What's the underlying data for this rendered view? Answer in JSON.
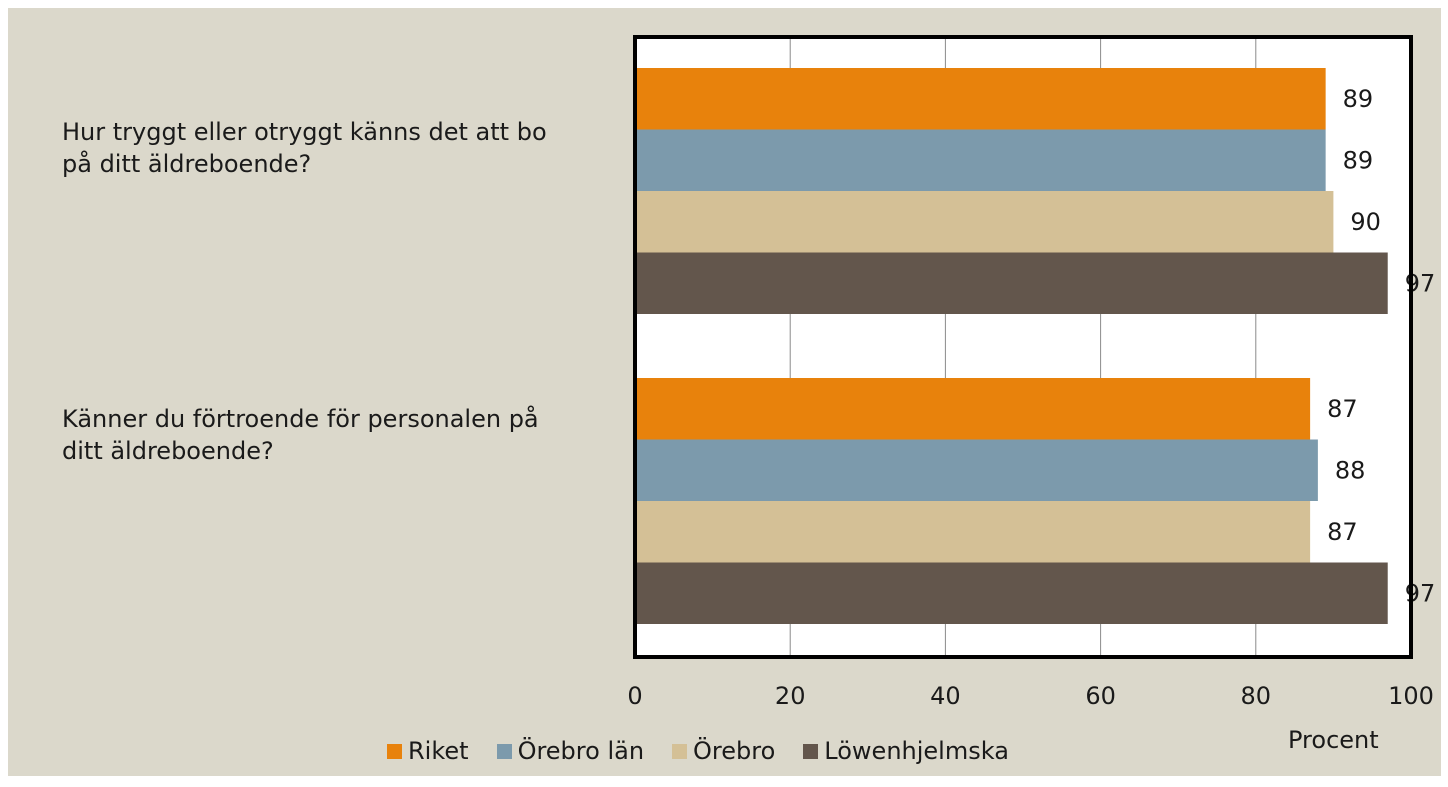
{
  "colors": {
    "page_bg": "#ffffff",
    "panel_bg": "#dbd8cb",
    "plot_bg": "#ffffff",
    "grid": "#8a8a8a",
    "border": "#000000"
  },
  "chart_data": {
    "type": "bar",
    "orientation": "horizontal",
    "categories": [
      "Hur tryggt eller otryggt känns det att bo på ditt äldreboende?",
      "Känner du förtroende för personalen på ditt äldreboende?"
    ],
    "series": [
      {
        "name": "Riket",
        "color": "#e8820c",
        "values": [
          89,
          87
        ]
      },
      {
        "name": "Örebro län",
        "color": "#7c9aac",
        "values": [
          89,
          88
        ]
      },
      {
        "name": "Örebro",
        "color": "#d4c096",
        "values": [
          90,
          87
        ]
      },
      {
        "name": "Löwenhjelmska",
        "color": "#63564c",
        "values": [
          97,
          97
        ]
      }
    ],
    "xlim": [
      0,
      100
    ],
    "xticks": [
      "0",
      "20",
      "40",
      "60",
      "80",
      "100"
    ],
    "xlabel": "Procent",
    "grid": true,
    "legend_position": "bottom",
    "data_labels": true
  }
}
